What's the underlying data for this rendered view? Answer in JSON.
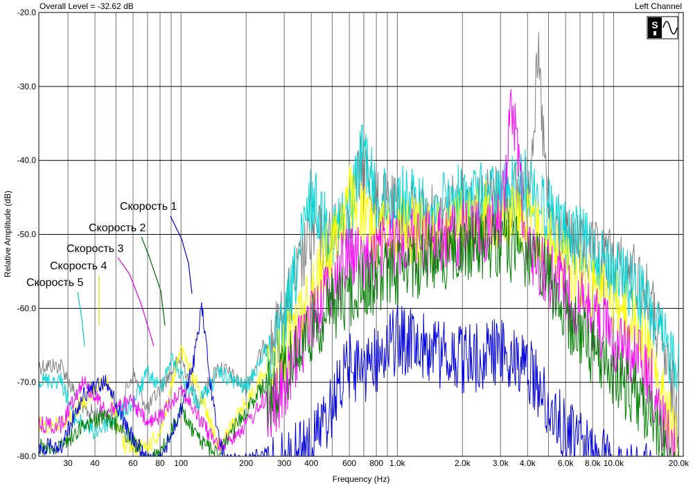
{
  "header": {
    "overall_level": "Overall Level = -32.62 dB",
    "channel": "Left Channel"
  },
  "logo": {
    "icon": "sine-wave-logo-icon"
  },
  "chart_data": {
    "type": "line",
    "xlabel": "Frequency (Hz)",
    "ylabel": "Relative Amplitude (dB)",
    "xscale": "log",
    "xlim": [
      22,
      21000
    ],
    "ylim": [
      -80,
      -20
    ],
    "grid": true,
    "x_ticks": [
      {
        "v": 30,
        "label": "30"
      },
      {
        "v": 40,
        "label": "40"
      },
      {
        "v": 60,
        "label": "60"
      },
      {
        "v": 80,
        "label": "80"
      },
      {
        "v": 100,
        "label": "100"
      },
      {
        "v": 200,
        "label": "200"
      },
      {
        "v": 300,
        "label": "300"
      },
      {
        "v": 400,
        "label": "400"
      },
      {
        "v": 600,
        "label": "600"
      },
      {
        "v": 800,
        "label": "800"
      },
      {
        "v": 1000,
        "label": "1.0k"
      },
      {
        "v": 2000,
        "label": "2.0k"
      },
      {
        "v": 3000,
        "label": "3.0k"
      },
      {
        "v": 4000,
        "label": "4.0k"
      },
      {
        "v": 6000,
        "label": "6.0k"
      },
      {
        "v": 8000,
        "label": "8.0k"
      },
      {
        "v": 10000,
        "label": "10.0k"
      },
      {
        "v": 20000,
        "label": "20.0k"
      }
    ],
    "y_ticks": [
      {
        "v": -20,
        "label": "-20.0"
      },
      {
        "v": -30,
        "label": "-30.0"
      },
      {
        "v": -40,
        "label": "-40.0"
      },
      {
        "v": -50,
        "label": "-50.0"
      },
      {
        "v": -60,
        "label": "-60.0"
      },
      {
        "v": -70,
        "label": "-70.0"
      },
      {
        "v": -80,
        "label": "-80.0"
      }
    ],
    "series": [
      {
        "color": "#808080",
        "points": [
          [
            22,
            -67
          ],
          [
            28,
            -67
          ],
          [
            35,
            -73
          ],
          [
            50,
            -74
          ],
          [
            60,
            -68
          ],
          [
            70,
            -73
          ],
          [
            80,
            -70
          ],
          [
            100,
            -66
          ],
          [
            120,
            -72
          ],
          [
            150,
            -67
          ],
          [
            200,
            -70
          ],
          [
            300,
            -58
          ],
          [
            400,
            -47
          ],
          [
            500,
            -48
          ],
          [
            600,
            -44
          ],
          [
            700,
            -37
          ],
          [
            800,
            -43
          ],
          [
            1000,
            -44
          ],
          [
            1500,
            -45
          ],
          [
            2000,
            -43
          ],
          [
            3000,
            -42
          ],
          [
            4000,
            -41
          ],
          [
            4500,
            -24
          ],
          [
            5000,
            -45
          ],
          [
            6000,
            -48
          ],
          [
            8000,
            -50
          ],
          [
            10000,
            -51
          ],
          [
            13000,
            -53
          ],
          [
            15000,
            -57
          ],
          [
            17000,
            -63
          ],
          [
            20000,
            -72
          ]
        ]
      },
      {
        "color": "#00d8d8",
        "points": [
          [
            22,
            -69
          ],
          [
            28,
            -69
          ],
          [
            32,
            -74
          ],
          [
            40,
            -76
          ],
          [
            50,
            -74
          ],
          [
            60,
            -72
          ],
          [
            70,
            -68
          ],
          [
            80,
            -70
          ],
          [
            90,
            -66
          ],
          [
            120,
            -72
          ],
          [
            150,
            -68
          ],
          [
            200,
            -70
          ],
          [
            300,
            -60
          ],
          [
            400,
            -42
          ],
          [
            500,
            -47
          ],
          [
            600,
            -44
          ],
          [
            700,
            -35
          ],
          [
            800,
            -43
          ],
          [
            1000,
            -42
          ],
          [
            1500,
            -44
          ],
          [
            2000,
            -42
          ],
          [
            3000,
            -42
          ],
          [
            4000,
            -40
          ],
          [
            5000,
            -44
          ],
          [
            6000,
            -47
          ],
          [
            8000,
            -49
          ],
          [
            10000,
            -52
          ],
          [
            13000,
            -55
          ],
          [
            15000,
            -58
          ],
          [
            17000,
            -62
          ],
          [
            20000,
            -64
          ]
        ]
      },
      {
        "color": "#ffff00",
        "points": [
          [
            22,
            -75
          ],
          [
            28,
            -75
          ],
          [
            35,
            -72
          ],
          [
            45,
            -69
          ],
          [
            55,
            -78
          ],
          [
            70,
            -78
          ],
          [
            80,
            -76
          ],
          [
            90,
            -70
          ],
          [
            100,
            -65
          ],
          [
            120,
            -70
          ],
          [
            150,
            -78
          ],
          [
            200,
            -72
          ],
          [
            300,
            -63
          ],
          [
            400,
            -55
          ],
          [
            500,
            -48
          ],
          [
            600,
            -42
          ],
          [
            700,
            -45
          ],
          [
            800,
            -47
          ],
          [
            1000,
            -46
          ],
          [
            1500,
            -47
          ],
          [
            2000,
            -45
          ],
          [
            3000,
            -44
          ],
          [
            4000,
            -45
          ],
          [
            5000,
            -48
          ],
          [
            6000,
            -51
          ],
          [
            8000,
            -54
          ],
          [
            10000,
            -56
          ],
          [
            13000,
            -60
          ],
          [
            15000,
            -64
          ],
          [
            17000,
            -70
          ],
          [
            20000,
            -76
          ]
        ]
      },
      {
        "color": "#ff00ff",
        "points": [
          [
            22,
            -75
          ],
          [
            28,
            -75
          ],
          [
            35,
            -69
          ],
          [
            45,
            -73
          ],
          [
            60,
            -72
          ],
          [
            70,
            -75
          ],
          [
            80,
            -74
          ],
          [
            100,
            -70
          ],
          [
            120,
            -74
          ],
          [
            150,
            -78
          ],
          [
            200,
            -75
          ],
          [
            300,
            -68
          ],
          [
            400,
            -58
          ],
          [
            500,
            -54
          ],
          [
            600,
            -49
          ],
          [
            700,
            -51
          ],
          [
            800,
            -50
          ],
          [
            1000,
            -48
          ],
          [
            1500,
            -48
          ],
          [
            2000,
            -47
          ],
          [
            3000,
            -46
          ],
          [
            3400,
            -29
          ],
          [
            4000,
            -49
          ],
          [
            5000,
            -52
          ],
          [
            6000,
            -55
          ],
          [
            8000,
            -58
          ],
          [
            10000,
            -61
          ],
          [
            13000,
            -64
          ],
          [
            15000,
            -67
          ],
          [
            17000,
            -73
          ],
          [
            20000,
            -79
          ]
        ]
      },
      {
        "color": "#008000",
        "points": [
          [
            22,
            -78
          ],
          [
            28,
            -78
          ],
          [
            35,
            -75
          ],
          [
            45,
            -74
          ],
          [
            60,
            -77
          ],
          [
            70,
            -80
          ],
          [
            80,
            -79
          ],
          [
            100,
            -73
          ],
          [
            120,
            -77
          ],
          [
            150,
            -79
          ],
          [
            200,
            -73
          ],
          [
            300,
            -66
          ],
          [
            400,
            -60
          ],
          [
            500,
            -57
          ],
          [
            600,
            -55
          ],
          [
            700,
            -54
          ],
          [
            800,
            -53
          ],
          [
            1000,
            -52
          ],
          [
            1500,
            -50
          ],
          [
            2000,
            -49
          ],
          [
            3000,
            -48
          ],
          [
            4000,
            -50
          ],
          [
            5000,
            -53
          ],
          [
            6000,
            -58
          ],
          [
            8000,
            -63
          ],
          [
            10000,
            -66
          ],
          [
            13000,
            -69
          ],
          [
            15000,
            -72
          ],
          [
            17000,
            -76
          ],
          [
            20000,
            -80
          ]
        ]
      },
      {
        "color": "#0000e0",
        "points": [
          [
            22,
            -78
          ],
          [
            28,
            -78
          ],
          [
            35,
            -71
          ],
          [
            45,
            -69
          ],
          [
            55,
            -75
          ],
          [
            70,
            -80
          ],
          [
            80,
            -80
          ],
          [
            100,
            -73
          ],
          [
            115,
            -66
          ],
          [
            125,
            -59
          ],
          [
            140,
            -72
          ],
          [
            160,
            -80
          ],
          [
            200,
            -80
          ],
          [
            300,
            -78
          ],
          [
            400,
            -76
          ],
          [
            500,
            -70
          ],
          [
            600,
            -65
          ],
          [
            700,
            -65
          ],
          [
            800,
            -64
          ],
          [
            1000,
            -61
          ],
          [
            1500,
            -63
          ],
          [
            2000,
            -64
          ],
          [
            3000,
            -63
          ],
          [
            4000,
            -65
          ],
          [
            5000,
            -70
          ],
          [
            6000,
            -74
          ],
          [
            8000,
            -77
          ],
          [
            10000,
            -79
          ],
          [
            13000,
            -80
          ],
          [
            15000,
            -80
          ]
        ]
      }
    ],
    "annotations": [
      {
        "text": "Скорость 1"
      },
      {
        "text": "Скорость 2"
      },
      {
        "text": "Скорость 3"
      },
      {
        "text": "Скорость 4"
      },
      {
        "text": "Скорость 5"
      }
    ]
  }
}
